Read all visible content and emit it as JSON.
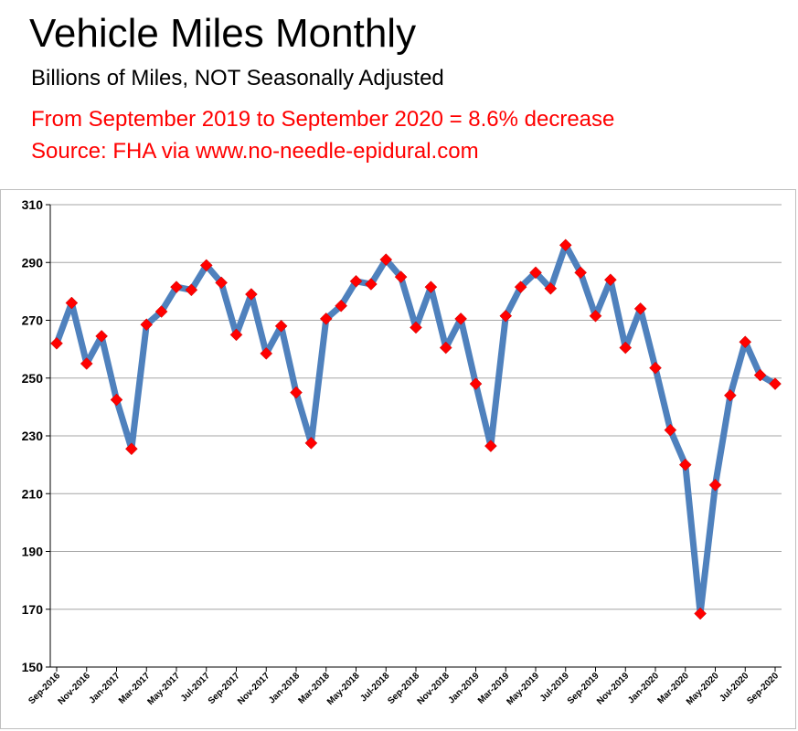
{
  "header": {
    "title": "Vehicle Miles Monthly",
    "subtitle": "Billions of Miles, NOT Seasonally Adjusted",
    "note": "From September 2019 to September 2020 = 8.6% decrease",
    "source": "Source: FHA via www.no-needle-epidural.com"
  },
  "colors": {
    "line": "#4f81bd",
    "marker": "#ff0000",
    "note": "#ff0000",
    "grid": "#a6a6a6"
  },
  "chart_data": {
    "type": "line",
    "title": "Vehicle Miles Monthly",
    "subtitle": "Billions of Miles, NOT Seasonally Adjusted",
    "xlabel": "",
    "ylabel": "",
    "ylim": [
      150,
      310
    ],
    "y_ticks": [
      150,
      170,
      190,
      210,
      230,
      250,
      270,
      290,
      310
    ],
    "grid": true,
    "legend": "none",
    "x": [
      "Sep-2016",
      "Oct-2016",
      "Nov-2016",
      "Dec-2016",
      "Jan-2017",
      "Feb-2017",
      "Mar-2017",
      "Apr-2017",
      "May-2017",
      "Jun-2017",
      "Jul-2017",
      "Aug-2017",
      "Sep-2017",
      "Oct-2017",
      "Nov-2017",
      "Dec-2017",
      "Jan-2018",
      "Feb-2018",
      "Mar-2018",
      "Apr-2018",
      "May-2018",
      "Jun-2018",
      "Jul-2018",
      "Aug-2018",
      "Sep-2018",
      "Oct-2018",
      "Nov-2018",
      "Dec-2018",
      "Jan-2019",
      "Feb-2019",
      "Mar-2019",
      "Apr-2019",
      "May-2019",
      "Jun-2019",
      "Jul-2019",
      "Aug-2019",
      "Sep-2019",
      "Oct-2019",
      "Nov-2019",
      "Dec-2019",
      "Jan-2020",
      "Feb-2020",
      "Mar-2020",
      "Apr-2020",
      "May-2020",
      "Jun-2020",
      "Jul-2020",
      "Aug-2020",
      "Sep-2020"
    ],
    "x_tick_labels": [
      "Sep-2016",
      "Nov-2016",
      "Jan-2017",
      "Mar-2017",
      "May-2017",
      "Jul-2017",
      "Sep-2017",
      "Nov-2017",
      "Jan-2018",
      "Mar-2018",
      "May-2018",
      "Jul-2018",
      "Sep-2018",
      "Nov-2018",
      "Jan-2019",
      "Mar-2019",
      "May-2019",
      "Jul-2019",
      "Sep-2019",
      "Nov-2019",
      "Jan-2020",
      "Mar-2020",
      "May-2020",
      "Jul-2020",
      "Sep-2020"
    ],
    "series": [
      {
        "values": [
          262,
          276,
          255,
          264.5,
          242.5,
          225.5,
          268.5,
          273,
          281.5,
          280.5,
          289,
          283,
          265,
          279,
          258.5,
          268,
          245,
          227.5,
          270.5,
          275,
          283.5,
          282.5,
          291,
          285,
          267.5,
          281.5,
          260.5,
          270.5,
          248,
          226.5,
          271.5,
          281.5,
          286.5,
          281,
          296,
          286.5,
          271.5,
          284,
          260.5,
          274,
          253.5,
          232,
          220,
          168.5,
          213,
          244,
          262.5,
          251,
          248
        ]
      }
    ]
  }
}
